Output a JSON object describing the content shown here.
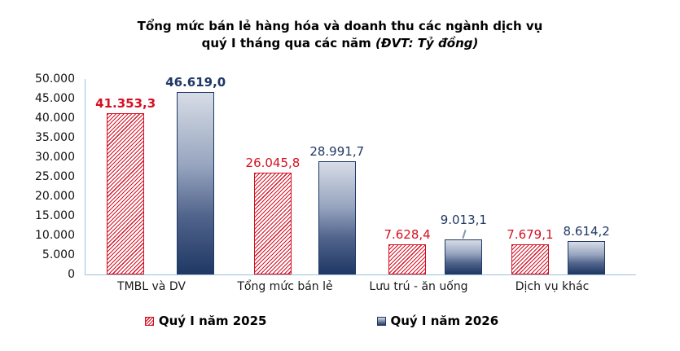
{
  "chart_data": {
    "type": "bar",
    "title": {
      "line1": "Tổng mức bán lẻ hàng hóa và doanh thu các ngành dịch vụ",
      "line2": "quý I tháng qua các năm",
      "unit_note": "(ĐVT: Tỷ đồng)"
    },
    "categories": [
      "TMBL và DV",
      "Tổng mức bán lẻ",
      "Lưu trú - ăn uống",
      "Dịch vụ khác"
    ],
    "series": [
      {
        "name": "Quý I năm 2025",
        "color": "#d50f22",
        "pattern": "diagonal-hatch",
        "values": [
          41353.3,
          26045.8,
          7628.4,
          7679.1
        ],
        "value_labels": [
          "41.353,3",
          "26.045,8",
          "7.628,4",
          "7.679,1"
        ]
      },
      {
        "name": "Quý I năm 2026",
        "color": "#1f3864",
        "pattern": "vertical-gradient",
        "values": [
          46619.0,
          28991.7,
          9013.1,
          8614.2
        ],
        "value_labels": [
          "46.619,0",
          "28.991,7",
          "9.013,1",
          "8.614,2"
        ]
      }
    ],
    "y_axis": {
      "ticks": [
        "50.000",
        "45.000",
        "40.000",
        "35.000",
        "30.000",
        "25.000",
        "20.000",
        "15.000",
        "10.000",
        "5.000",
        "0"
      ],
      "min": 0,
      "max": 50000
    },
    "axis_color": "#9cc2e0",
    "grid": false,
    "legend_position": "bottom"
  }
}
